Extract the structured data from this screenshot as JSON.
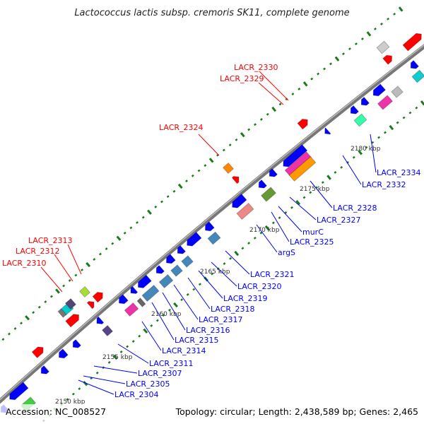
{
  "title": "Lactococcus lactis subsp. cremoris SK11, complete genome",
  "footer": {
    "accession": "Accession: NC_008527",
    "summary": "Topology: circular; Length: 2,438,589 bp; Genes: 2,465"
  },
  "labels_forward": [
    "LACR_2330",
    "LACR_2329",
    "LACR_2324",
    "LACR_2313",
    "LACR_2312",
    "LACR_2310"
  ],
  "labels_reverse": [
    "LACR_2334",
    "LACR_2332",
    "LACR_2328",
    "LACR_2327",
    "murC",
    "LACR_2325",
    "argS",
    "LACR_2321",
    "LACR_2320",
    "LACR_2319",
    "LACR_2318",
    "LACR_2317",
    "LACR_2316",
    "LACR_2315",
    "LACR_2314",
    "LACR_2311",
    "LACR_2307",
    "LACR_2305",
    "LACR_2304"
  ],
  "ticks": [
    "2150 kbp",
    "2155 kbp",
    "2160 kbp",
    "2165 kbp",
    "2170 kbp",
    "2175 kbp",
    "2180 kbp"
  ],
  "colors": {
    "forward_label": "#ff0000",
    "reverse_label": "#0000ff",
    "backbone": "#888888",
    "tick_dot": "#1a7a1a"
  }
}
